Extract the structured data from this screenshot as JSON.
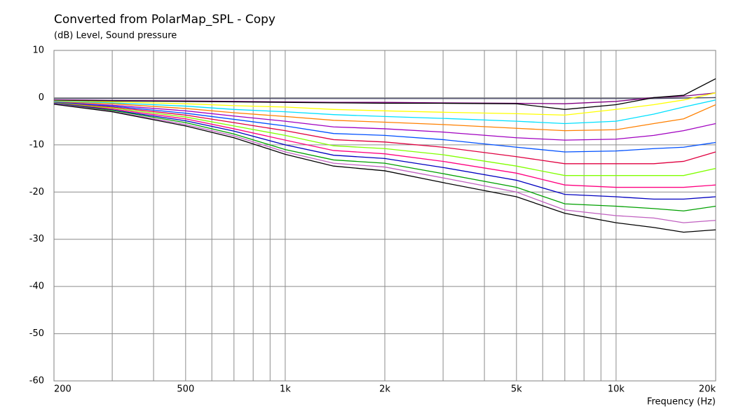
{
  "chart_data": {
    "type": "line",
    "title": "Converted from PolarMap_SPL - Copy",
    "y_label": "(dB)  Level, Sound pressure",
    "x_label": "Frequency  (Hz)",
    "x_scale": "log",
    "grid": true,
    "x": [
      200,
      300,
      500,
      700,
      1000,
      1400,
      2000,
      3000,
      5000,
      7000,
      10000,
      13000,
      16000,
      20000
    ],
    "xlim": [
      200,
      20000
    ],
    "xticks": [
      200,
      500,
      {
        "value": 1000,
        "label": "1k"
      },
      {
        "value": 2000,
        "label": "2k"
      },
      {
        "value": 5000,
        "label": "5k"
      },
      {
        "value": 10000,
        "label": "10k"
      },
      {
        "value": 20000,
        "label": "20k"
      }
    ],
    "xgrid_minor": [
      300,
      400,
      600,
      700,
      800,
      900,
      3000,
      4000,
      6000,
      7000,
      8000,
      9000
    ],
    "ylim": [
      -60,
      10
    ],
    "yticks": [
      10,
      0,
      -10,
      -20,
      -30,
      -40,
      -50,
      -60
    ],
    "series": [
      {
        "color": "#404060",
        "values": [
          -0.2,
          -0.2,
          -0.2,
          -0.2,
          -0.2,
          -0.2,
          -0.2,
          -0.2,
          -0.2,
          -0.2,
          -0.2,
          -0.2,
          -0.1,
          0
        ]
      },
      {
        "color": "#800080",
        "values": [
          -0.5,
          -0.6,
          -0.7,
          -0.8,
          -0.9,
          -1,
          -1,
          -1.1,
          -1.2,
          -1.3,
          -0.8,
          0,
          0.3,
          1
        ]
      },
      {
        "color": "#000000",
        "values": [
          -0.6,
          -0.7,
          -0.8,
          -0.9,
          -1,
          -1.1,
          -1.2,
          -1.2,
          -1.3,
          -2.5,
          -1.5,
          0,
          0.5,
          4
        ]
      },
      {
        "color": "#ffff00",
        "values": [
          -0.7,
          -0.9,
          -1.3,
          -1.7,
          -2,
          -2.5,
          -2.8,
          -3.1,
          -3.4,
          -3.7,
          -2.5,
          -1.5,
          -0.5,
          1
        ]
      },
      {
        "color": "#00e0ff",
        "values": [
          -0.8,
          -1.1,
          -1.8,
          -2.5,
          -3,
          -3.6,
          -4,
          -4.4,
          -5,
          -5.5,
          -5,
          -3.5,
          -2,
          -0.5
        ]
      },
      {
        "color": "#ff8000",
        "values": [
          -0.9,
          -1.3,
          -2.3,
          -3.2,
          -4,
          -4.8,
          -5.2,
          -5.7,
          -6.5,
          -7,
          -6.8,
          -5.5,
          -4.5,
          -1.5
        ]
      },
      {
        "color": "#a000c0",
        "values": [
          -1,
          -1.6,
          -2.8,
          -3.9,
          -5,
          -6.2,
          -6.6,
          -7.3,
          -8.5,
          -9,
          -8.8,
          -8,
          -7,
          -5.5
        ]
      },
      {
        "color": "#0050ff",
        "values": [
          -1,
          -1.8,
          -3.3,
          -4.6,
          -6,
          -7.6,
          -8,
          -8.9,
          -10.5,
          -11.5,
          -11.3,
          -10.8,
          -10.5,
          -9.5
        ]
      },
      {
        "color": "#e00040",
        "values": [
          -1.1,
          -2,
          -3.7,
          -5.3,
          -7,
          -8.9,
          -9.4,
          -10.5,
          -12.5,
          -14,
          -14,
          -14,
          -13.5,
          -11.5
        ]
      },
      {
        "color": "#80ff00",
        "values": [
          -1.1,
          -2.2,
          -4.1,
          -6,
          -8,
          -10.2,
          -10.8,
          -12.1,
          -14.5,
          -16.5,
          -16.5,
          -16.5,
          -16.5,
          -15
        ]
      },
      {
        "color": "#ff0080",
        "values": [
          -1.2,
          -2.4,
          -4.5,
          -6.6,
          -9,
          -11.2,
          -11.9,
          -13.5,
          -16,
          -18.5,
          -19,
          -19,
          -19,
          -18.5
        ]
      },
      {
        "color": "#0000c0",
        "values": [
          -1.2,
          -2.6,
          -4.9,
          -7.1,
          -10,
          -12.2,
          -12.9,
          -14.8,
          -17.5,
          -20.5,
          -21,
          -21.5,
          -21.5,
          -21
        ]
      },
      {
        "color": "#00a000",
        "values": [
          -1.3,
          -2.7,
          -5.3,
          -7.7,
          -11,
          -13.2,
          -13.9,
          -16.1,
          -19,
          -22.5,
          -23,
          -23.5,
          -24,
          -23
        ]
      },
      {
        "color": "#c060c0",
        "values": [
          -1.3,
          -2.9,
          -5.7,
          -8.1,
          -11.5,
          -13.9,
          -14.7,
          -17,
          -20,
          -23.8,
          -25,
          -25.5,
          -26.5,
          -26
        ]
      },
      {
        "color": "#000000",
        "values": [
          -1.4,
          -3,
          -6,
          -8.5,
          -12,
          -14.5,
          -15.5,
          -18,
          -21,
          -24.5,
          -26.5,
          -27.5,
          -28.5,
          -28
        ]
      }
    ]
  }
}
